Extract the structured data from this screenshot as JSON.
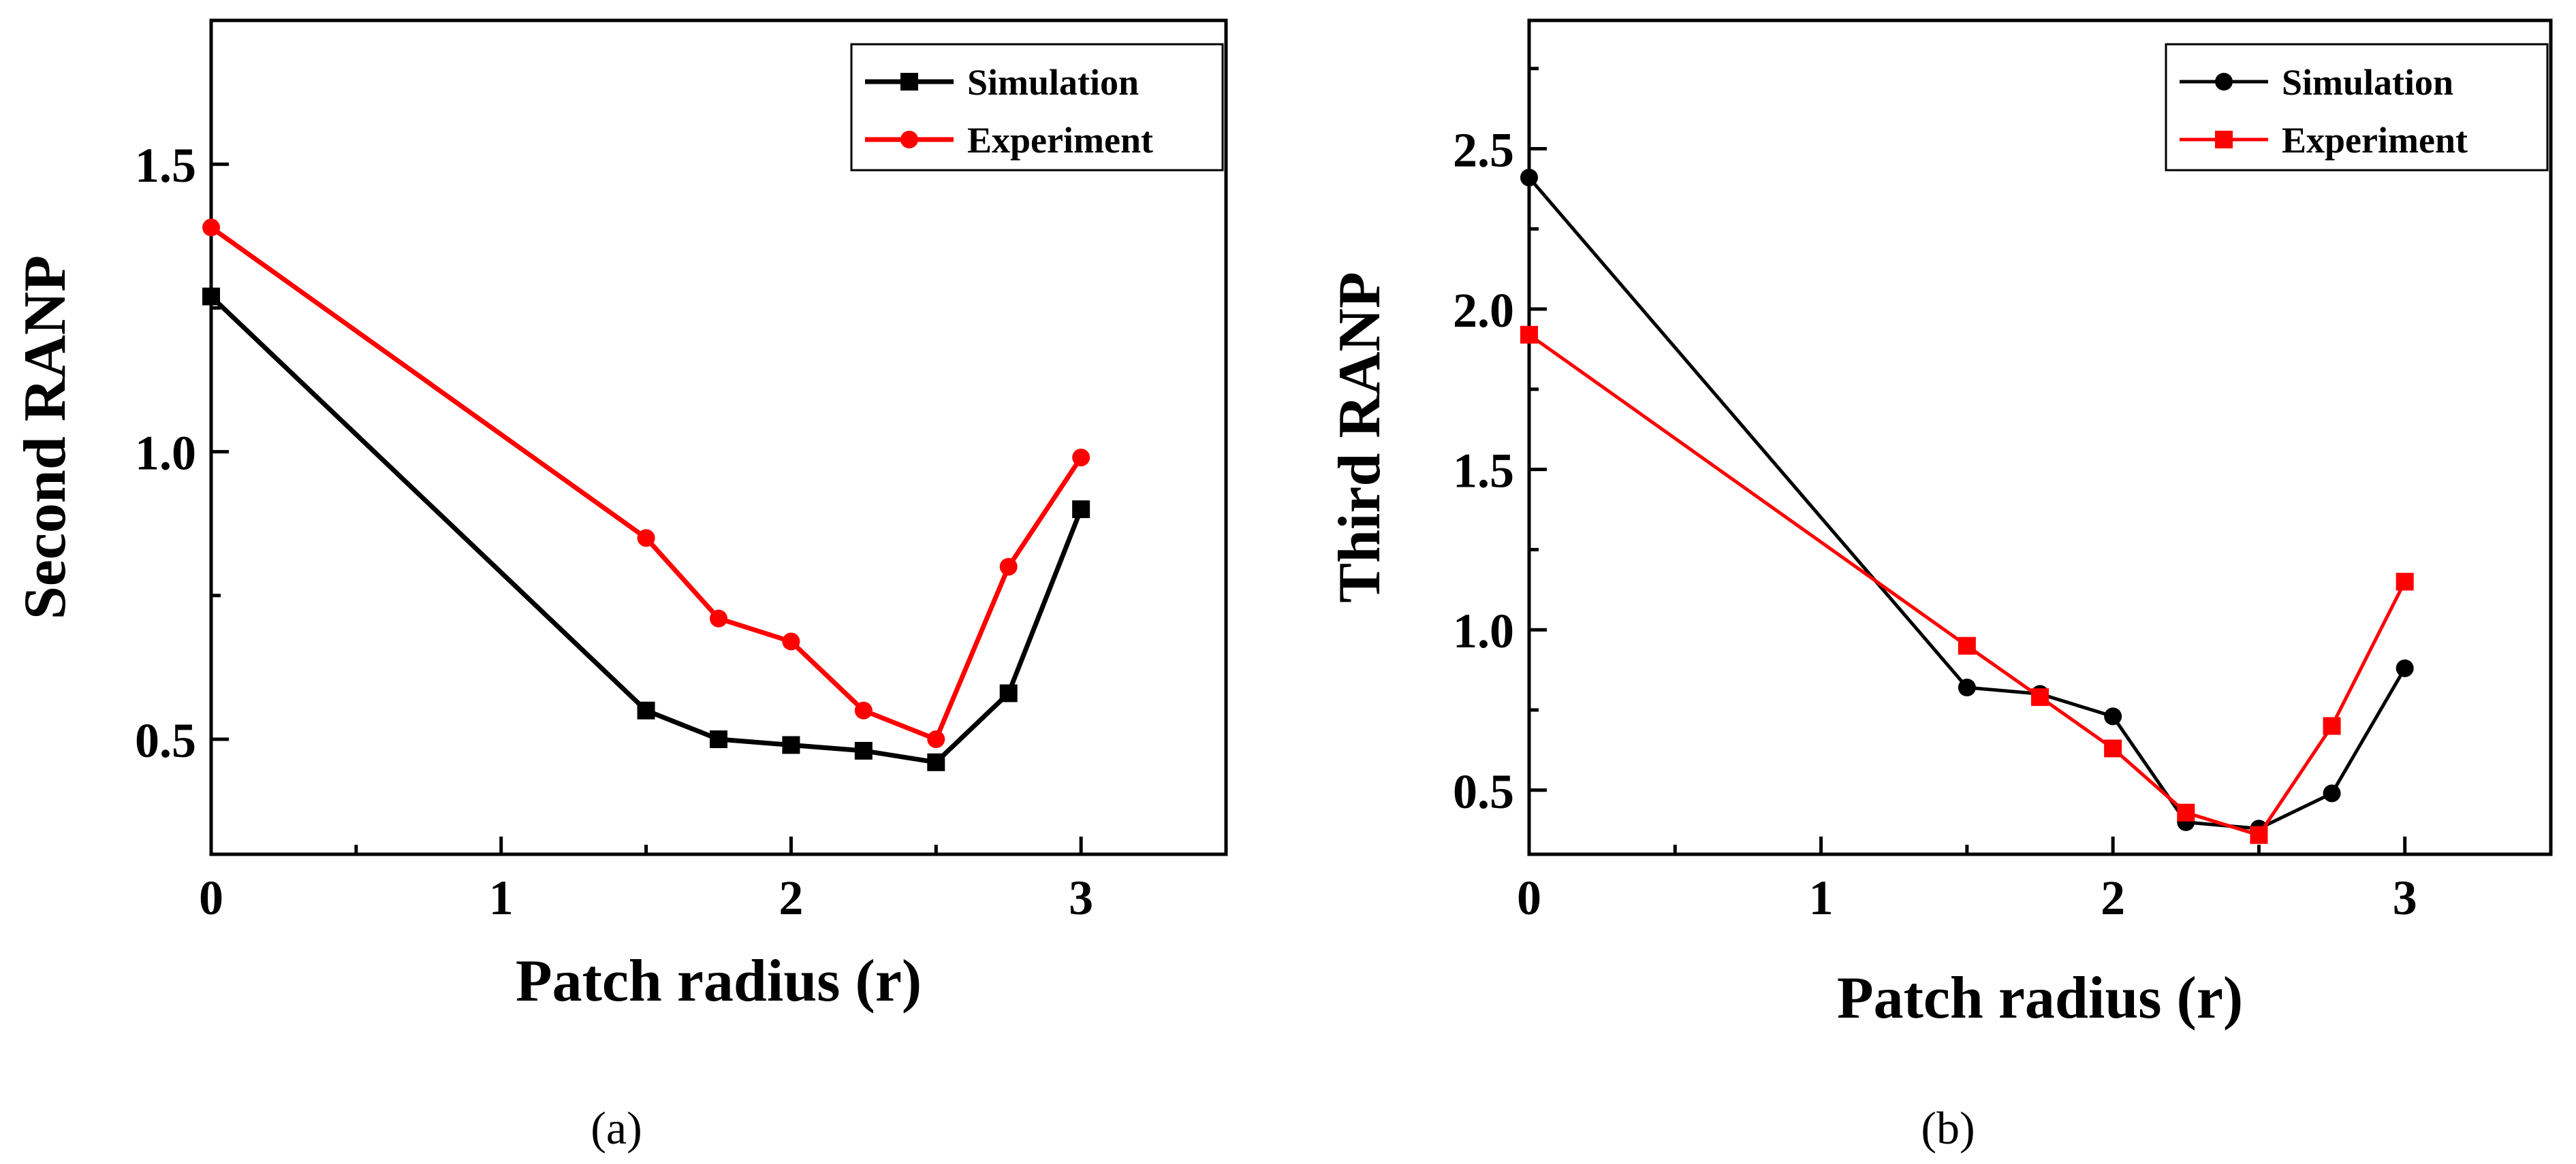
{
  "chart_data": [
    {
      "type": "line",
      "panel_label": "(a)",
      "xlabel": "Patch radius (r)",
      "ylabel": "Second RANP",
      "xlim": [
        0,
        3.5
      ],
      "ylim": [
        0.3,
        1.75
      ],
      "xticks": [
        0,
        1,
        2,
        3
      ],
      "xtick_labels": [
        "0",
        "1",
        "2",
        "3"
      ],
      "yticks": [
        0.5,
        1.0,
        1.5
      ],
      "ytick_labels": [
        "0.5",
        "1.0",
        "1.5"
      ],
      "legend_position": "top-right",
      "series": [
        {
          "name": "Simulation",
          "color": "#000000",
          "marker": "square",
          "x": [
            0,
            1.5,
            1.75,
            2,
            2.25,
            2.5,
            2.75,
            3
          ],
          "y": [
            1.27,
            0.55,
            0.5,
            0.49,
            0.48,
            0.46,
            0.58,
            0.9
          ]
        },
        {
          "name": "Experiment",
          "color": "#ff0000",
          "marker": "circle",
          "x": [
            0,
            1.5,
            1.75,
            2,
            2.25,
            2.5,
            2.75,
            3
          ],
          "y": [
            1.39,
            0.85,
            0.71,
            0.67,
            0.55,
            0.5,
            0.8,
            0.99
          ]
        }
      ]
    },
    {
      "type": "line",
      "panel_label": "(b)",
      "xlabel": "Patch radius (r)",
      "ylabel": "Third RANP",
      "xlim": [
        0,
        3.5
      ],
      "ylim": [
        0.3,
        2.9
      ],
      "xticks": [
        0,
        1,
        2,
        3
      ],
      "xtick_labels": [
        "0",
        "1",
        "2",
        "3"
      ],
      "yticks": [
        0.5,
        1.0,
        1.5,
        2.0,
        2.5
      ],
      "ytick_labels": [
        "0.5",
        "1.0",
        "1.5",
        "2.0",
        "2.5"
      ],
      "legend_position": "top-right",
      "series": [
        {
          "name": "Simulation",
          "color": "#000000",
          "marker": "circle",
          "x": [
            0,
            1.5,
            1.75,
            2,
            2.25,
            2.5,
            2.75,
            3
          ],
          "y": [
            2.41,
            0.82,
            0.8,
            0.73,
            0.4,
            0.38,
            0.49,
            0.88
          ]
        },
        {
          "name": "Experiment",
          "color": "#ff0000",
          "marker": "square",
          "x": [
            0,
            1.5,
            1.75,
            2,
            2.25,
            2.5,
            2.75,
            3
          ],
          "y": [
            1.92,
            0.95,
            0.79,
            0.63,
            0.43,
            0.36,
            0.7,
            1.15
          ]
        }
      ]
    }
  ]
}
